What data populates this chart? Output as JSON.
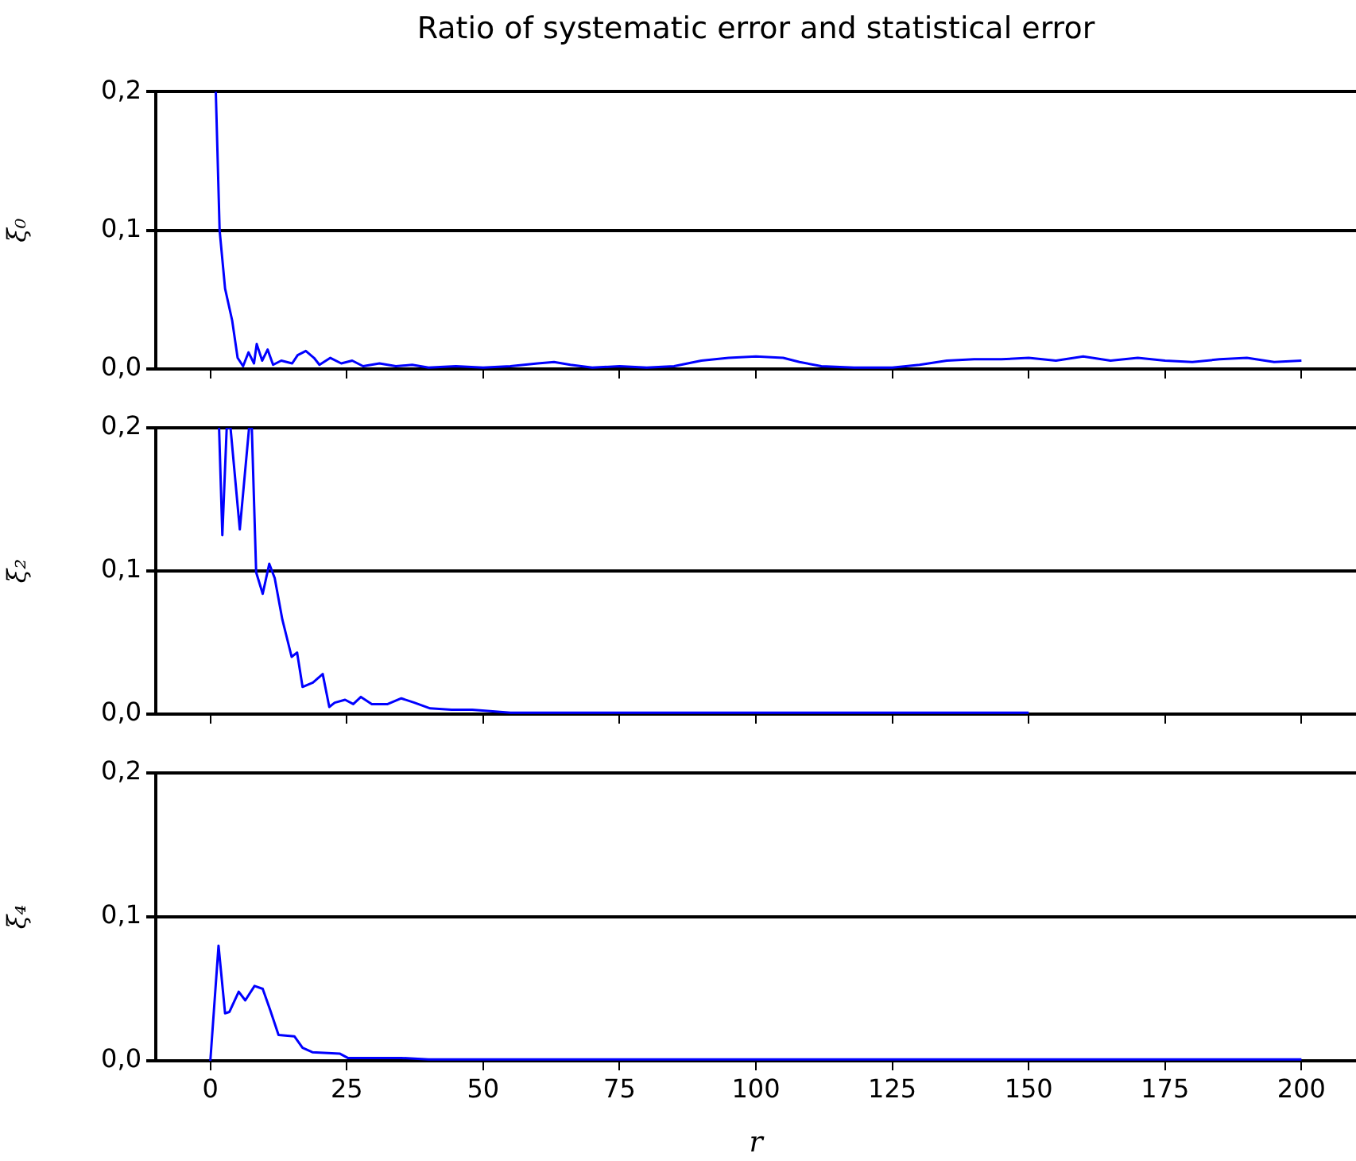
{
  "chart_data": [
    {
      "type": "line",
      "title": "Ratio of systematic error and statistical error",
      "ylabel": "ξ₀",
      "tick_labels": "y",
      "grid": "y",
      "xlim": [
        -10,
        210
      ],
      "xticks": [
        0,
        25,
        50,
        75,
        100,
        125,
        150,
        175,
        200
      ],
      "ylim": [
        0,
        0.2
      ],
      "yticks": [
        {
          "value": 0,
          "label": "0,0"
        },
        {
          "value": 0.1,
          "label": "0,1"
        },
        {
          "value": 0.2,
          "label": "0,2"
        }
      ],
      "series": [
        {
          "color": "#0000ff",
          "x": [
            1,
            1.7,
            2.7,
            4,
            5,
            6,
            7,
            8,
            8.5,
            9.5,
            10.5,
            11.5,
            13,
            15,
            16,
            17.5,
            19,
            20,
            22,
            24,
            26,
            28,
            31,
            34,
            37,
            40,
            45,
            50,
            55,
            60,
            63,
            66,
            70,
            75,
            80,
            85,
            90,
            95,
            100,
            105,
            108,
            112,
            118,
            125,
            130,
            135,
            140,
            145,
            150,
            155,
            160,
            165,
            170,
            175,
            180,
            185,
            190,
            195,
            200
          ],
          "values": [
            0.2,
            0.1,
            0.058,
            0.035,
            0.008,
            0.002,
            0.012,
            0.004,
            0.018,
            0.006,
            0.014,
            0.003,
            0.006,
            0.004,
            0.01,
            0.013,
            0.008,
            0.003,
            0.008,
            0.004,
            0.006,
            0.002,
            0.004,
            0.002,
            0.003,
            0.001,
            0.002,
            0.001,
            0.002,
            0.004,
            0.005,
            0.003,
            0.001,
            0.002,
            0.001,
            0.002,
            0.006,
            0.008,
            0.009,
            0.008,
            0.005,
            0.002,
            0.001,
            0.001,
            0.003,
            0.006,
            0.007,
            0.007,
            0.008,
            0.006,
            0.009,
            0.006,
            0.008,
            0.006,
            0.005,
            0.007,
            0.008,
            0.005,
            0.006
          ]
        }
      ]
    },
    {
      "type": "line",
      "ylabel": "ξ₂",
      "tick_labels": "y",
      "grid": "y",
      "xlim": [
        -10,
        210
      ],
      "xticks": [
        0,
        25,
        50,
        75,
        100,
        125,
        150,
        175,
        200
      ],
      "ylim": [
        0,
        0.2
      ],
      "yticks": [
        {
          "value": 0,
          "label": "0,0"
        },
        {
          "value": 0.1,
          "label": "0,1"
        },
        {
          "value": 0.2,
          "label": "0,2"
        }
      ],
      "series": [
        {
          "color": "#0000ff",
          "x": [
            1.6,
            2.2,
            3,
            3.7,
            5.4,
            7.1,
            7.6,
            8.4,
            9.6,
            10.8,
            11.8,
            13.2,
            14.9,
            15.9,
            16.9,
            18.8,
            20.6,
            21.8,
            22.8,
            24.7,
            26.2,
            27.6,
            29.6,
            32.5,
            35,
            37.4,
            40.3,
            44.2,
            48,
            55,
            75,
            100,
            125,
            150
          ],
          "values": [
            0.2,
            0.125,
            0.2,
            0.2,
            0.129,
            0.2,
            0.2,
            0.099,
            0.084,
            0.105,
            0.095,
            0.066,
            0.04,
            0.043,
            0.019,
            0.022,
            0.028,
            0.005,
            0.008,
            0.01,
            0.007,
            0.012,
            0.007,
            0.007,
            0.011,
            0.008,
            0.004,
            0.003,
            0.003,
            0.001,
            0.001,
            0.001,
            0.001,
            0.001
          ]
        }
      ]
    },
    {
      "type": "line",
      "xlabel": "r",
      "ylabel": "ξ₄",
      "grid": "y",
      "xlim": [
        -10,
        210
      ],
      "xticks": [
        0,
        25,
        50,
        75,
        100,
        125,
        150,
        175,
        200
      ],
      "ylim": [
        0,
        0.2
      ],
      "yticks": [
        {
          "value": 0,
          "label": "0,0"
        },
        {
          "value": 0.1,
          "label": "0,1"
        },
        {
          "value": 0.2,
          "label": "0,2"
        }
      ],
      "series": [
        {
          "color": "#0000ff",
          "x": [
            0,
            1.5,
            2.7,
            3.5,
            5.2,
            6.4,
            8.1,
            9.6,
            11,
            12.5,
            15.4,
            16.9,
            18.7,
            23.7,
            25.2,
            30,
            35,
            40,
            50,
            75,
            100,
            150,
            200
          ],
          "values": [
            0,
            0.08,
            0.033,
            0.034,
            0.048,
            0.042,
            0.052,
            0.05,
            0.035,
            0.018,
            0.017,
            0.009,
            0.006,
            0.005,
            0.002,
            0.002,
            0.002,
            0.001,
            0.001,
            0.001,
            0.001,
            0.001,
            0.001
          ]
        }
      ]
    }
  ]
}
